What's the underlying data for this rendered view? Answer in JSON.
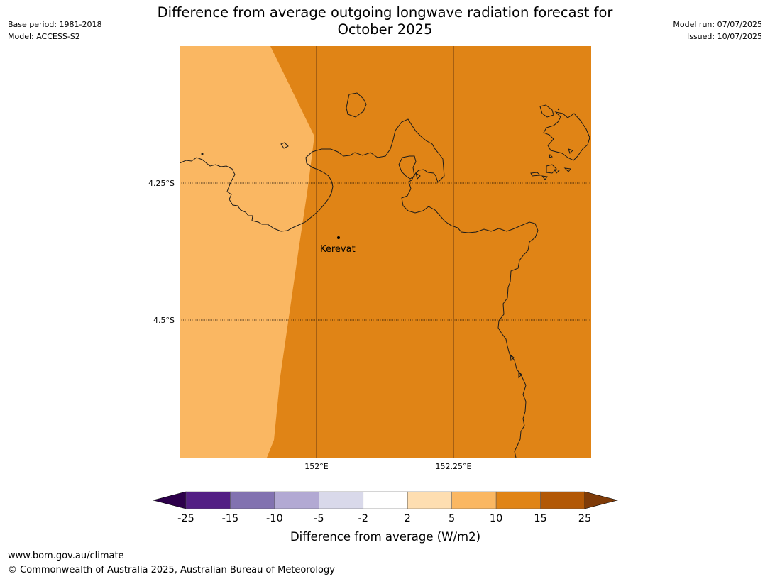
{
  "header": {
    "base_period": "Base period: 1981-2018",
    "model": "Model: ACCESS-S2",
    "model_run": "Model run: 07/07/2025",
    "issued": "Issued: 10/07/2025",
    "title_line1": "Difference from average outgoing longwave radiation forecast for",
    "title_line2": "October 2025"
  },
  "map": {
    "lat_labels": [
      "4.25°S",
      "4.5°S"
    ],
    "lon_labels": [
      "152°E",
      "152.25°E"
    ],
    "places": [
      {
        "name": "Kerevat"
      }
    ],
    "colors": {
      "bin_5_10": "#fab762",
      "bin_10_15": "#e08416",
      "coastline": "#1a1a1a"
    }
  },
  "colorbar": {
    "ticks": [
      "-25",
      "-15",
      "-10",
      "-5",
      "-2",
      "2",
      "5",
      "10",
      "15",
      "25"
    ],
    "label": "Difference from average (W/m2)",
    "colors": [
      "#531f84",
      "#8272b0",
      "#b2a9d3",
      "#d9d9ea",
      "#ffffff",
      "#fedeb1",
      "#fab762",
      "#e08416",
      "#b25806"
    ],
    "under_color": "#2d004b",
    "over_color": "#7f3b08"
  },
  "footer": {
    "url": "www.bom.gov.au/climate",
    "copyright": "© Commonwealth of Australia 2025, Australian Bureau of Meteorology"
  }
}
